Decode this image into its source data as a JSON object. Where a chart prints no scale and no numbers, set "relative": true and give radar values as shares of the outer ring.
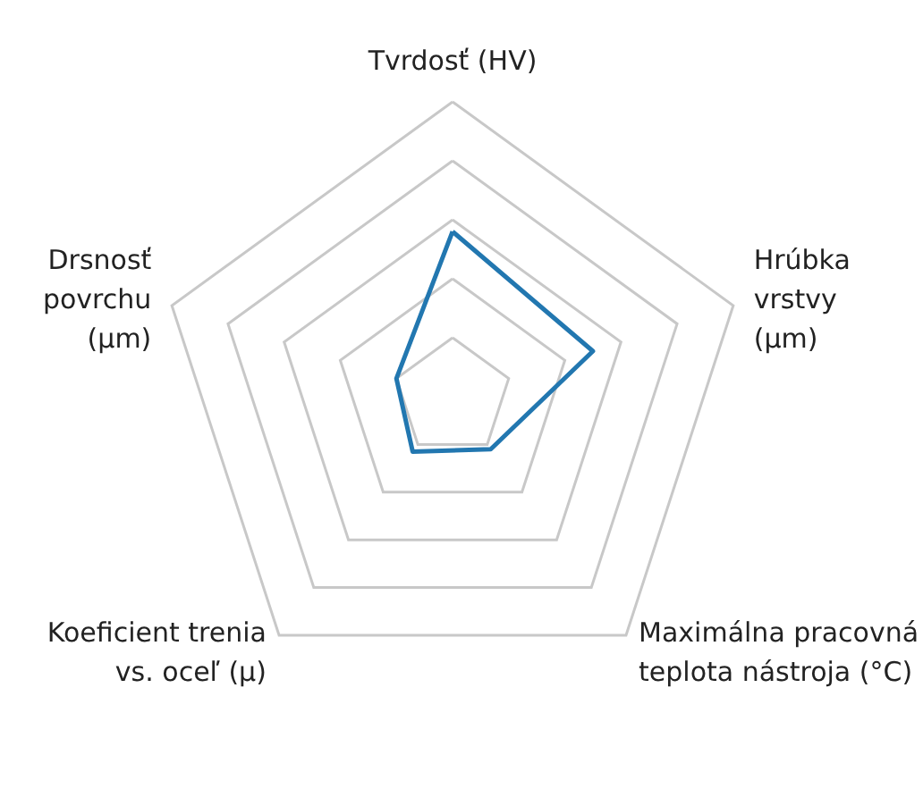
{
  "chart_data": {
    "type": "radar",
    "relative": true,
    "categories": [
      "Tvrdosť (HV)",
      "Hrúbka\nvrstvy\n(µm)",
      "Maximálna pracovná\nteplota nástroja (°C)",
      "Koeficient trenia\nvs. oceľ (µ)",
      "Drsnosť\npovrchu\n(µm)"
    ],
    "series": [
      {
        "color": "#2277b0",
        "values": [
          0.56,
          0.5,
          0.22,
          0.23,
          0.2
        ]
      }
    ],
    "grid": true,
    "marker": "none"
  }
}
